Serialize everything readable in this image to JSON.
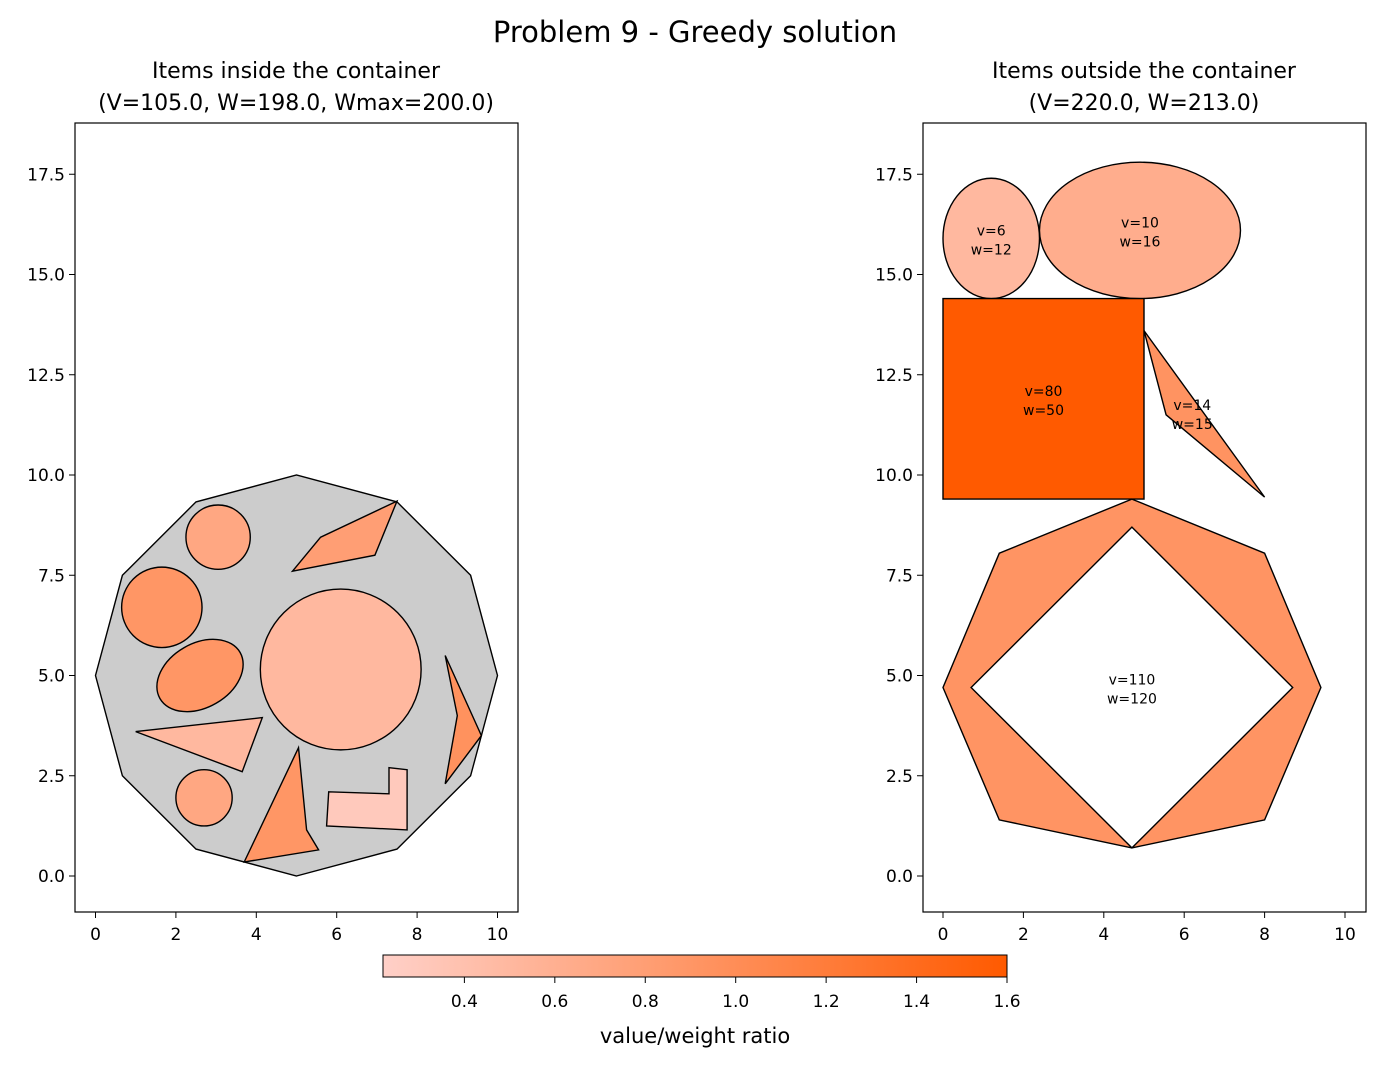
{
  "figure": {
    "title": "Problem 9 - Greedy solution"
  },
  "colors": {
    "item_edge": "#000000",
    "container_fill": "#cccccc",
    "cmap_low": "#ffd0c8",
    "cmap_high": "#ff5a00"
  },
  "panels": [
    {
      "title_line1": "Items inside the container",
      "title_line2": "(V=105.0, W=198.0, Wmax=200.0)"
    },
    {
      "title_line1": "Items outside the container",
      "title_line2": "(V=220.0, W=213.0)"
    }
  ],
  "colorbar": {
    "label": "value/weight ratio",
    "range": [
      0.22,
      1.6
    ],
    "ticks": [
      "0.4",
      "0.6",
      "0.8",
      "1.0",
      "1.2",
      "1.4",
      "1.6"
    ],
    "tick_values": [
      0.4,
      0.6,
      0.8,
      1.0,
      1.2,
      1.4,
      1.6
    ]
  },
  "chart_data": [
    {
      "type": "scatter",
      "title": "Items inside the container\n(V=105.0, W=198.0, Wmax=200.0)",
      "xlim": [
        -0.5,
        10.5
      ],
      "ylim": [
        -0.9,
        18.7
      ],
      "xticks": [
        0,
        2,
        4,
        6,
        8,
        10
      ],
      "xtick_labels": [
        "0",
        "2",
        "4",
        "6",
        "8",
        "10"
      ],
      "yticks": [
        0.0,
        2.5,
        5.0,
        7.5,
        10.0,
        12.5,
        15.0,
        17.5
      ],
      "ytick_labels": [
        "0.0",
        "2.5",
        "5.0",
        "7.5",
        "10.0",
        "12.5",
        "15.0",
        "17.5"
      ],
      "grid": false,
      "container": {
        "shape": "polygon",
        "points": [
          [
            5,
            0
          ],
          [
            7.5,
            0.67
          ],
          [
            9.33,
            2.5
          ],
          [
            10,
            5
          ],
          [
            9.33,
            7.5
          ],
          [
            7.5,
            9.33
          ],
          [
            5,
            10
          ],
          [
            2.5,
            9.33
          ],
          [
            0.67,
            7.5
          ],
          [
            0,
            5
          ],
          [
            0.67,
            2.5
          ],
          [
            2.5,
            0.67
          ]
        ]
      },
      "items": [
        {
          "shape": "circle",
          "center": [
            3.05,
            8.45
          ],
          "radius": 0.8,
          "ratio": 0.7
        },
        {
          "shape": "circle",
          "center": [
            1.65,
            6.7
          ],
          "radius": 1.0,
          "ratio": 0.9
        },
        {
          "shape": "ellipse",
          "center": [
            2.6,
            5.0
          ],
          "rx": 1.15,
          "ry": 0.8,
          "angle": 30,
          "ratio": 0.9
        },
        {
          "shape": "circle",
          "center": [
            6.1,
            5.15
          ],
          "radius": 2.0,
          "ratio": 0.5
        },
        {
          "shape": "circle",
          "center": [
            2.7,
            1.95
          ],
          "radius": 0.7,
          "ratio": 0.7
        },
        {
          "shape": "polygon",
          "points": [
            [
              4.9,
              7.6
            ],
            [
              5.6,
              8.45
            ],
            [
              7.5,
              9.35
            ],
            [
              6.95,
              8.0
            ]
          ],
          "ratio": 0.8
        },
        {
          "shape": "polygon",
          "points": [
            [
              1.0,
              3.6
            ],
            [
              4.15,
              3.95
            ],
            [
              3.65,
              2.6
            ]
          ],
          "ratio": 0.5
        },
        {
          "shape": "polygon",
          "points": [
            [
              3.7,
              0.35
            ],
            [
              5.05,
              3.2
            ],
            [
              5.25,
              1.15
            ],
            [
              5.55,
              0.65
            ]
          ],
          "ratio": 0.9
        },
        {
          "shape": "polygon",
          "points": [
            [
              8.7,
              5.5
            ],
            [
              9.6,
              3.5
            ],
            [
              8.7,
              2.3
            ],
            [
              9.0,
              4.0
            ]
          ],
          "ratio": 0.95
        },
        {
          "shape": "polygon",
          "points": [
            [
              7.75,
              2.65
            ],
            [
              7.75,
              1.15
            ],
            [
              5.75,
              1.25
            ],
            [
              5.8,
              2.1
            ],
            [
              7.3,
              2.05
            ],
            [
              7.3,
              2.7
            ]
          ],
          "ratio": 0.3
        }
      ]
    },
    {
      "type": "scatter",
      "title": "Items outside the container\n(V=220.0, W=213.0)",
      "xlim": [
        -0.5,
        10.5
      ],
      "ylim": [
        -0.9,
        18.7
      ],
      "xticks": [
        0,
        2,
        4,
        6,
        8,
        10
      ],
      "xtick_labels": [
        "0",
        "2",
        "4",
        "6",
        "8",
        "10"
      ],
      "yticks": [
        0.0,
        2.5,
        5.0,
        7.5,
        10.0,
        12.5,
        15.0,
        17.5
      ],
      "ytick_labels": [
        "0.0",
        "2.5",
        "5.0",
        "7.5",
        "10.0",
        "12.5",
        "15.0",
        "17.5"
      ],
      "grid": false,
      "items": [
        {
          "shape": "ellipse",
          "center": [
            1.2,
            15.9
          ],
          "rx": 1.2,
          "ry": 1.5,
          "angle": 0,
          "ratio": 0.5,
          "label": [
            "v=6",
            "w=12"
          ]
        },
        {
          "shape": "ellipse",
          "center": [
            4.9,
            16.1
          ],
          "rx": 2.5,
          "ry": 1.7,
          "angle": 0,
          "ratio": 0.625,
          "label": [
            "v=10",
            "w=16"
          ]
        },
        {
          "shape": "polygon",
          "points": [
            [
              0,
              9.4
            ],
            [
              5,
              9.4
            ],
            [
              5,
              14.4
            ],
            [
              0,
              14.4
            ]
          ],
          "ratio": 1.6,
          "label": [
            "v=80",
            "w=50"
          ],
          "label_at": [
            2.5,
            11.9
          ]
        },
        {
          "shape": "polygon",
          "points": [
            [
              5.0,
              13.6
            ],
            [
              5.55,
              11.5
            ],
            [
              8.0,
              9.45
            ]
          ],
          "ratio": 0.93,
          "label": [
            "v=14",
            "w=15"
          ],
          "label_at": [
            6.2,
            11.55
          ]
        },
        {
          "shape": "ring",
          "outer": [
            [
              4.7,
              9.4
            ],
            [
              8.0,
              8.05
            ],
            [
              9.4,
              4.7
            ],
            [
              8.0,
              1.4
            ],
            [
              4.7,
              0.7
            ],
            [
              1.4,
              1.4
            ],
            [
              0,
              4.7
            ],
            [
              1.4,
              8.05
            ]
          ],
          "inner": [
            [
              4.7,
              8.7
            ],
            [
              8.7,
              4.7
            ],
            [
              4.7,
              0.7
            ],
            [
              0.7,
              4.7
            ]
          ],
          "ratio": 0.917,
          "label": [
            "v=110",
            "w=120"
          ],
          "label_at": [
            4.7,
            4.7
          ]
        }
      ]
    }
  ]
}
